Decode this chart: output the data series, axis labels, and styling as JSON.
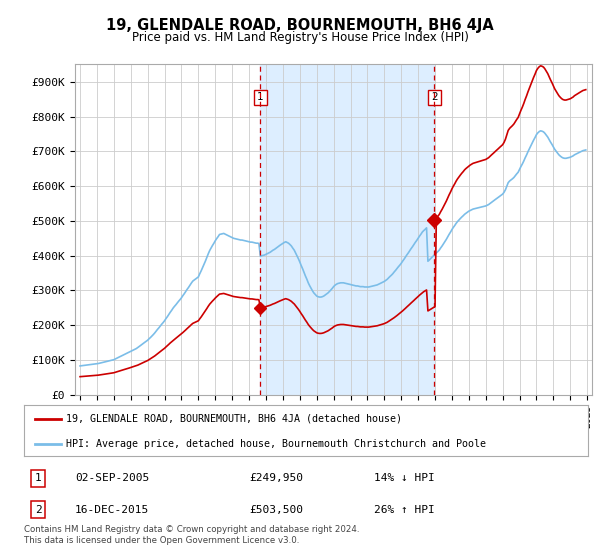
{
  "title": "19, GLENDALE ROAD, BOURNEMOUTH, BH6 4JA",
  "subtitle": "Price paid vs. HM Land Registry's House Price Index (HPI)",
  "ylabel_ticks": [
    "£0",
    "£100K",
    "£200K",
    "£300K",
    "£400K",
    "£500K",
    "£600K",
    "£700K",
    "£800K",
    "£900K"
  ],
  "ytick_values": [
    0,
    100000,
    200000,
    300000,
    400000,
    500000,
    600000,
    700000,
    800000,
    900000
  ],
  "ylim": [
    0,
    950000
  ],
  "xlim_start": 1994.7,
  "xlim_end": 2025.3,
  "hpi_color": "#7bbde8",
  "hpi_fill_color": "#ddeeff",
  "price_color": "#cc0000",
  "vline_color": "#cc0000",
  "marker1_date": 2005.67,
  "marker1_price": 249950,
  "marker1_label": "1",
  "marker2_date": 2015.96,
  "marker2_price": 503500,
  "marker2_label": "2",
  "legend_line1": "19, GLENDALE ROAD, BOURNEMOUTH, BH6 4JA (detached house)",
  "legend_line2": "HPI: Average price, detached house, Bournemouth Christchurch and Poole",
  "table_row1": [
    "1",
    "02-SEP-2005",
    "£249,950",
    "14% ↓ HPI"
  ],
  "table_row2": [
    "2",
    "16-DEC-2015",
    "£503,500",
    "26% ↑ HPI"
  ],
  "footnote": "Contains HM Land Registry data © Crown copyright and database right 2024.\nThis data is licensed under the Open Government Licence v3.0.",
  "background_color": "#ffffff",
  "grid_color": "#cccccc",
  "hpi_years": [
    1995,
    1995.08,
    1995.17,
    1995.25,
    1995.33,
    1995.42,
    1995.5,
    1995.58,
    1995.67,
    1995.75,
    1995.83,
    1995.92,
    1996,
    1996.08,
    1996.17,
    1996.25,
    1996.33,
    1996.42,
    1996.5,
    1996.58,
    1996.67,
    1996.75,
    1996.83,
    1996.92,
    1997,
    1997.08,
    1997.17,
    1997.25,
    1997.33,
    1997.42,
    1997.5,
    1997.58,
    1997.67,
    1997.75,
    1997.83,
    1997.92,
    1998,
    1998.08,
    1998.17,
    1998.25,
    1998.33,
    1998.42,
    1998.5,
    1998.58,
    1998.67,
    1998.75,
    1998.83,
    1998.92,
    1999,
    1999.08,
    1999.17,
    1999.25,
    1999.33,
    1999.42,
    1999.5,
    1999.58,
    1999.67,
    1999.75,
    1999.83,
    1999.92,
    2000,
    2000.08,
    2000.17,
    2000.25,
    2000.33,
    2000.42,
    2000.5,
    2000.58,
    2000.67,
    2000.75,
    2000.83,
    2000.92,
    2001,
    2001.08,
    2001.17,
    2001.25,
    2001.33,
    2001.42,
    2001.5,
    2001.58,
    2001.67,
    2001.75,
    2001.83,
    2001.92,
    2002,
    2002.08,
    2002.17,
    2002.25,
    2002.33,
    2002.42,
    2002.5,
    2002.58,
    2002.67,
    2002.75,
    2002.83,
    2002.92,
    2003,
    2003.08,
    2003.17,
    2003.25,
    2003.33,
    2003.42,
    2003.5,
    2003.58,
    2003.67,
    2003.75,
    2003.83,
    2003.92,
    2004,
    2004.08,
    2004.17,
    2004.25,
    2004.33,
    2004.42,
    2004.5,
    2004.58,
    2004.67,
    2004.75,
    2004.83,
    2004.92,
    2005,
    2005.08,
    2005.17,
    2005.25,
    2005.33,
    2005.42,
    2005.5,
    2005.58,
    2005.67,
    2005.75,
    2005.83,
    2005.92,
    2006,
    2006.08,
    2006.17,
    2006.25,
    2006.33,
    2006.42,
    2006.5,
    2006.58,
    2006.67,
    2006.75,
    2006.83,
    2006.92,
    2007,
    2007.08,
    2007.17,
    2007.25,
    2007.33,
    2007.42,
    2007.5,
    2007.58,
    2007.67,
    2007.75,
    2007.83,
    2007.92,
    2008,
    2008.08,
    2008.17,
    2008.25,
    2008.33,
    2008.42,
    2008.5,
    2008.58,
    2008.67,
    2008.75,
    2008.83,
    2008.92,
    2009,
    2009.08,
    2009.17,
    2009.25,
    2009.33,
    2009.42,
    2009.5,
    2009.58,
    2009.67,
    2009.75,
    2009.83,
    2009.92,
    2010,
    2010.08,
    2010.17,
    2010.25,
    2010.33,
    2010.42,
    2010.5,
    2010.58,
    2010.67,
    2010.75,
    2010.83,
    2010.92,
    2011,
    2011.08,
    2011.17,
    2011.25,
    2011.33,
    2011.42,
    2011.5,
    2011.58,
    2011.67,
    2011.75,
    2011.83,
    2011.92,
    2012,
    2012.08,
    2012.17,
    2012.25,
    2012.33,
    2012.42,
    2012.5,
    2012.58,
    2012.67,
    2012.75,
    2012.83,
    2012.92,
    2013,
    2013.08,
    2013.17,
    2013.25,
    2013.33,
    2013.42,
    2013.5,
    2013.58,
    2013.67,
    2013.75,
    2013.83,
    2013.92,
    2014,
    2014.08,
    2014.17,
    2014.25,
    2014.33,
    2014.42,
    2014.5,
    2014.58,
    2014.67,
    2014.75,
    2014.83,
    2014.92,
    2015,
    2015.08,
    2015.17,
    2015.25,
    2015.33,
    2015.42,
    2015.5,
    2015.58,
    2015.67,
    2015.75,
    2015.83,
    2015.92,
    2016,
    2016.08,
    2016.17,
    2016.25,
    2016.33,
    2016.42,
    2016.5,
    2016.58,
    2016.67,
    2016.75,
    2016.83,
    2016.92,
    2017,
    2017.08,
    2017.17,
    2017.25,
    2017.33,
    2017.42,
    2017.5,
    2017.58,
    2017.67,
    2017.75,
    2017.83,
    2017.92,
    2018,
    2018.08,
    2018.17,
    2018.25,
    2018.33,
    2018.42,
    2018.5,
    2018.58,
    2018.67,
    2018.75,
    2018.83,
    2018.92,
    2019,
    2019.08,
    2019.17,
    2019.25,
    2019.33,
    2019.42,
    2019.5,
    2019.58,
    2019.67,
    2019.75,
    2019.83,
    2019.92,
    2020,
    2020.08,
    2020.17,
    2020.25,
    2020.33,
    2020.42,
    2020.5,
    2020.58,
    2020.67,
    2020.75,
    2020.83,
    2020.92,
    2021,
    2021.08,
    2021.17,
    2021.25,
    2021.33,
    2021.42,
    2021.5,
    2021.58,
    2021.67,
    2021.75,
    2021.83,
    2021.92,
    2022,
    2022.08,
    2022.17,
    2022.25,
    2022.33,
    2022.42,
    2022.5,
    2022.58,
    2022.67,
    2022.75,
    2022.83,
    2022.92,
    2023,
    2023.08,
    2023.17,
    2023.25,
    2023.33,
    2023.42,
    2023.5,
    2023.58,
    2023.67,
    2023.75,
    2023.83,
    2023.92,
    2024,
    2024.08,
    2024.17,
    2024.25,
    2024.33,
    2024.42,
    2024.5,
    2024.58,
    2024.67,
    2024.75,
    2024.83,
    2024.92
  ],
  "hpi_vals": [
    83000,
    83500,
    84000,
    84500,
    85000,
    85500,
    86000,
    86500,
    87000,
    87500,
    88000,
    88500,
    89000,
    90000,
    91000,
    92000,
    93000,
    94000,
    95000,
    96000,
    97000,
    98000,
    99000,
    100000,
    101000,
    103000,
    105000,
    107000,
    109000,
    111000,
    113000,
    115000,
    117000,
    119000,
    121000,
    123000,
    125000,
    127000,
    129000,
    131000,
    133000,
    136000,
    139000,
    142000,
    145000,
    148000,
    151000,
    154000,
    157000,
    161000,
    165000,
    169000,
    173000,
    178000,
    183000,
    188000,
    193000,
    198000,
    203000,
    208000,
    213000,
    219000,
    225000,
    231000,
    237000,
    243000,
    249000,
    254000,
    259000,
    264000,
    269000,
    274000,
    279000,
    285000,
    291000,
    297000,
    303000,
    309000,
    315000,
    321000,
    327000,
    330000,
    333000,
    336000,
    339000,
    348000,
    357000,
    366000,
    375000,
    385000,
    395000,
    405000,
    415000,
    422000,
    429000,
    436000,
    443000,
    449000,
    455000,
    461000,
    462000,
    463000,
    464000,
    462000,
    460000,
    458000,
    456000,
    454000,
    452000,
    450000,
    449000,
    448000,
    447000,
    446000,
    445000,
    445000,
    444000,
    443000,
    442000,
    441000,
    440000,
    439000,
    439000,
    438000,
    437000,
    436000,
    436000,
    435000,
    398000,
    400000,
    401000,
    402000,
    404000,
    406000,
    408000,
    410000,
    413000,
    416000,
    418000,
    421000,
    424000,
    427000,
    430000,
    433000,
    436000,
    438000,
    440000,
    438000,
    436000,
    432000,
    428000,
    422000,
    416000,
    408000,
    400000,
    391000,
    382000,
    372000,
    362000,
    352000,
    342000,
    332000,
    322000,
    314000,
    306000,
    299000,
    293000,
    288000,
    284000,
    282000,
    281000,
    281000,
    282000,
    284000,
    287000,
    290000,
    293000,
    297000,
    301000,
    306000,
    311000,
    315000,
    318000,
    320000,
    321000,
    322000,
    322000,
    322000,
    321000,
    320000,
    319000,
    318000,
    317000,
    316000,
    315000,
    314000,
    313000,
    313000,
    312000,
    311000,
    311000,
    311000,
    310000,
    310000,
    310000,
    310000,
    311000,
    312000,
    313000,
    314000,
    315000,
    316000,
    318000,
    320000,
    322000,
    324000,
    326000,
    329000,
    332000,
    336000,
    340000,
    344000,
    348000,
    353000,
    358000,
    363000,
    368000,
    373000,
    378000,
    384000,
    390000,
    396000,
    402000,
    408000,
    414000,
    420000,
    426000,
    432000,
    438000,
    444000,
    450000,
    456000,
    462000,
    468000,
    472000,
    476000,
    480000,
    384000,
    388000,
    392000,
    396000,
    400000,
    404000,
    408000,
    412000,
    416000,
    422000,
    428000,
    434000,
    440000,
    447000,
    454000,
    461000,
    468000,
    475000,
    481000,
    487000,
    493000,
    498000,
    503000,
    507000,
    511000,
    515000,
    519000,
    522000,
    525000,
    528000,
    530000,
    532000,
    534000,
    535000,
    536000,
    537000,
    538000,
    539000,
    540000,
    541000,
    542000,
    543000,
    545000,
    547000,
    550000,
    553000,
    556000,
    559000,
    562000,
    565000,
    568000,
    571000,
    574000,
    577000,
    582000,
    590000,
    600000,
    610000,
    615000,
    618000,
    621000,
    625000,
    630000,
    635000,
    640000,
    648000,
    656000,
    664000,
    672000,
    681000,
    690000,
    699000,
    707000,
    716000,
    724000,
    732000,
    740000,
    748000,
    753000,
    757000,
    759000,
    758000,
    756000,
    752000,
    747000,
    741000,
    734000,
    727000,
    720000,
    713000,
    706000,
    700000,
    695000,
    690000,
    686000,
    683000,
    681000,
    680000,
    680000,
    681000,
    682000,
    683000,
    685000,
    687000,
    690000,
    692000,
    694000,
    696000,
    698000,
    700000,
    702000,
    703000,
    704000
  ]
}
